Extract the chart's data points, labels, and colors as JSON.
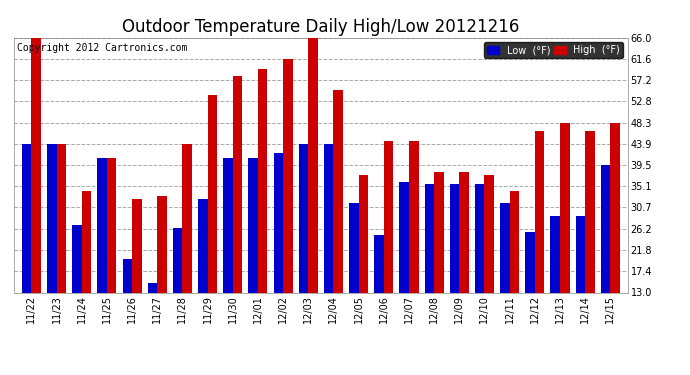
{
  "title": "Outdoor Temperature Daily High/Low 20121216",
  "copyright": "Copyright 2012 Cartronics.com",
  "legend_low": "Low  (°F)",
  "legend_high": "High  (°F)",
  "dates": [
    "11/22",
    "11/23",
    "11/24",
    "11/25",
    "11/26",
    "11/27",
    "11/28",
    "11/29",
    "11/30",
    "12/01",
    "12/02",
    "12/03",
    "12/04",
    "12/05",
    "12/06",
    "12/07",
    "12/08",
    "12/09",
    "12/10",
    "12/11",
    "12/12",
    "12/13",
    "12/14",
    "12/15"
  ],
  "highs": [
    66.0,
    43.9,
    34.0,
    41.0,
    32.5,
    33.0,
    43.9,
    54.0,
    58.0,
    59.5,
    61.5,
    66.0,
    55.0,
    37.5,
    44.5,
    44.5,
    38.0,
    38.0,
    37.5,
    34.0,
    46.5,
    48.3,
    46.5,
    48.3
  ],
  "lows": [
    43.9,
    43.9,
    27.0,
    41.0,
    20.0,
    15.0,
    26.5,
    32.5,
    41.0,
    41.0,
    42.0,
    43.9,
    43.9,
    31.5,
    25.0,
    36.0,
    35.5,
    35.5,
    35.5,
    31.5,
    25.5,
    29.0,
    29.0,
    39.5
  ],
  "ylim": [
    13.0,
    66.0
  ],
  "yticks": [
    13.0,
    17.4,
    21.8,
    26.2,
    30.7,
    35.1,
    39.5,
    43.9,
    48.3,
    52.8,
    57.2,
    61.6,
    66.0
  ],
  "bar_width": 0.38,
  "high_color": "#cc0000",
  "low_color": "#0000cc",
  "bg_color": "#ffffff",
  "plot_bg_color": "#ffffff",
  "grid_color": "#aaaaaa",
  "title_fontsize": 12,
  "copyright_fontsize": 7
}
